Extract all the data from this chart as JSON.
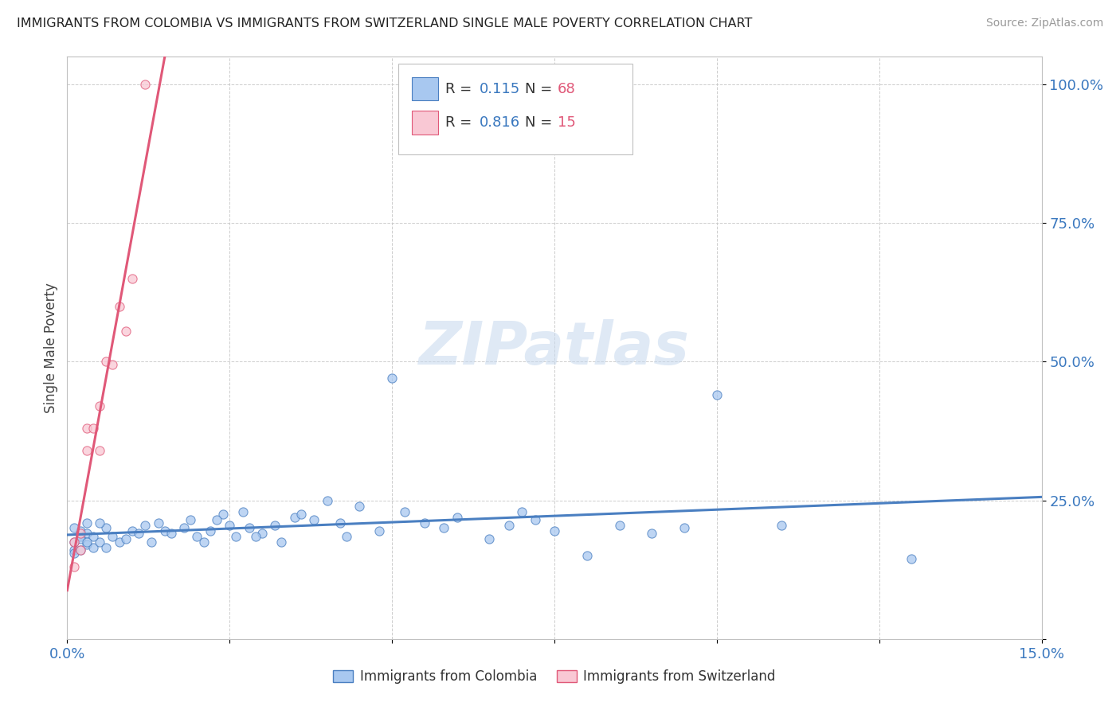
{
  "title": "IMMIGRANTS FROM COLOMBIA VS IMMIGRANTS FROM SWITZERLAND SINGLE MALE POVERTY CORRELATION CHART",
  "source": "Source: ZipAtlas.com",
  "ylabel": "Single Male Poverty",
  "colombia_r": 0.115,
  "colombia_n": 68,
  "switzerland_r": 0.816,
  "switzerland_n": 15,
  "colombia_color": "#a8c8f0",
  "switzerland_color": "#f9c8d4",
  "colombia_line_color": "#4a7fc1",
  "switzerland_line_color": "#e05878",
  "colombia_scatter_x": [
    0.001,
    0.002,
    0.001,
    0.003,
    0.002,
    0.001,
    0.003,
    0.004,
    0.002,
    0.003,
    0.001,
    0.005,
    0.002,
    0.004,
    0.006,
    0.003,
    0.005,
    0.007,
    0.008,
    0.006,
    0.01,
    0.009,
    0.012,
    0.011,
    0.015,
    0.013,
    0.014,
    0.016,
    0.018,
    0.02,
    0.019,
    0.022,
    0.025,
    0.021,
    0.024,
    0.026,
    0.028,
    0.023,
    0.03,
    0.027,
    0.032,
    0.029,
    0.035,
    0.038,
    0.04,
    0.033,
    0.036,
    0.042,
    0.045,
    0.048,
    0.05,
    0.043,
    0.055,
    0.052,
    0.06,
    0.058,
    0.065,
    0.068,
    0.07,
    0.075,
    0.08,
    0.072,
    0.085,
    0.09,
    0.095,
    0.1,
    0.11,
    0.13
  ],
  "colombia_scatter_y": [
    0.175,
    0.185,
    0.16,
    0.17,
    0.195,
    0.155,
    0.21,
    0.165,
    0.18,
    0.19,
    0.2,
    0.175,
    0.16,
    0.185,
    0.2,
    0.175,
    0.21,
    0.185,
    0.175,
    0.165,
    0.195,
    0.18,
    0.205,
    0.19,
    0.195,
    0.175,
    0.21,
    0.19,
    0.2,
    0.185,
    0.215,
    0.195,
    0.205,
    0.175,
    0.225,
    0.185,
    0.2,
    0.215,
    0.19,
    0.23,
    0.205,
    0.185,
    0.22,
    0.215,
    0.25,
    0.175,
    0.225,
    0.21,
    0.24,
    0.195,
    0.47,
    0.185,
    0.21,
    0.23,
    0.22,
    0.2,
    0.18,
    0.205,
    0.23,
    0.195,
    0.15,
    0.215,
    0.205,
    0.19,
    0.2,
    0.44,
    0.205,
    0.145
  ],
  "switzerland_scatter_x": [
    0.001,
    0.001,
    0.002,
    0.002,
    0.003,
    0.003,
    0.004,
    0.005,
    0.005,
    0.006,
    0.007,
    0.008,
    0.009,
    0.01,
    0.012
  ],
  "switzerland_scatter_y": [
    0.175,
    0.13,
    0.19,
    0.16,
    0.38,
    0.34,
    0.38,
    0.42,
    0.34,
    0.5,
    0.495,
    0.6,
    0.555,
    0.65,
    1.0
  ],
  "xlim": [
    0.0,
    0.15
  ],
  "ylim": [
    0.0,
    1.05
  ],
  "xticks": [
    0.0,
    0.025,
    0.05,
    0.075,
    0.1,
    0.125,
    0.15
  ],
  "yticks": [
    0.0,
    0.25,
    0.5,
    0.75,
    1.0
  ]
}
